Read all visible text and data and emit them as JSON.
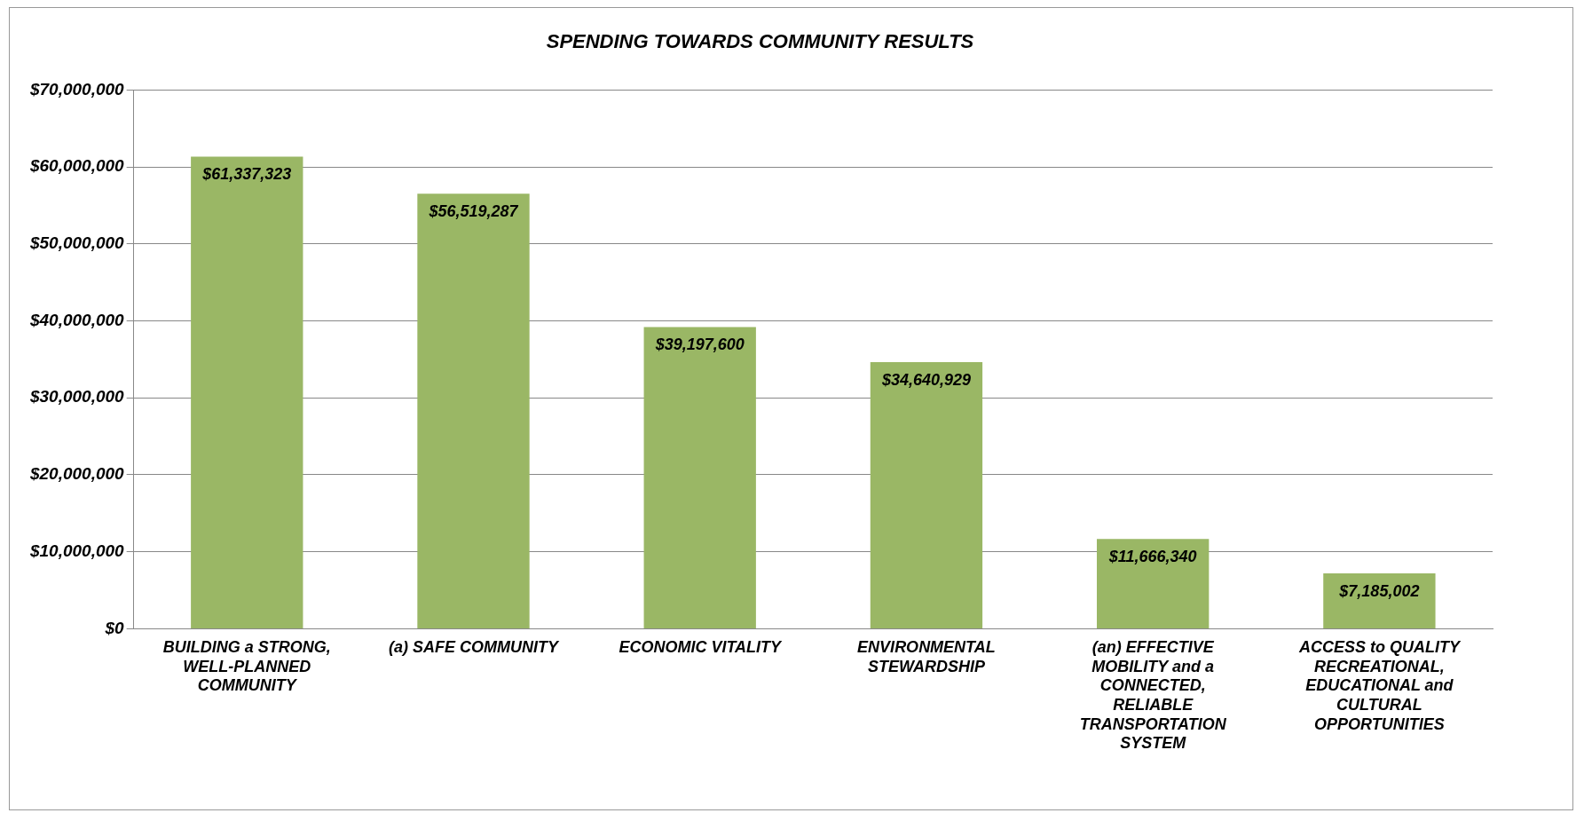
{
  "chart_data": {
    "type": "bar",
    "title": "SPENDING TOWARDS COMMUNITY RESULTS",
    "categories": [
      "BUILDING a STRONG, WELL-PLANNED COMMUNITY",
      "(a) SAFE COMMUNITY",
      "ECONOMIC VITALITY",
      "ENVIRONMENTAL STEWARDSHIP",
      "(an) EFFECTIVE MOBILITY and a CONNECTED, RELIABLE TRANSPORTATION SYSTEM",
      "ACCESS to QUALITY RECREATIONAL, EDUCATIONAL and CULTURAL OPPORTUNITIES"
    ],
    "values": [
      61337323,
      56519287,
      39197600,
      34640929,
      11666340,
      7185002
    ],
    "value_labels": [
      "$61,337,323",
      "$56,519,287",
      "$39,197,600",
      "$34,640,929",
      "$11,666,340",
      "$7,185,002"
    ],
    "color": "#9ab765",
    "ylim": [
      0,
      70000000
    ],
    "yticks": [
      {
        "value": 0,
        "label": "$0"
      },
      {
        "value": 10000000,
        "label": "$10,000,000"
      },
      {
        "value": 20000000,
        "label": "$20,000,000"
      },
      {
        "value": 30000000,
        "label": "$30,000,000"
      },
      {
        "value": 40000000,
        "label": "$40,000,000"
      },
      {
        "value": 50000000,
        "label": "$50,000,000"
      },
      {
        "value": 60000000,
        "label": "$60,000,000"
      },
      {
        "value": 70000000,
        "label": "$70,000,000"
      }
    ],
    "grid": "y",
    "legend": false
  }
}
